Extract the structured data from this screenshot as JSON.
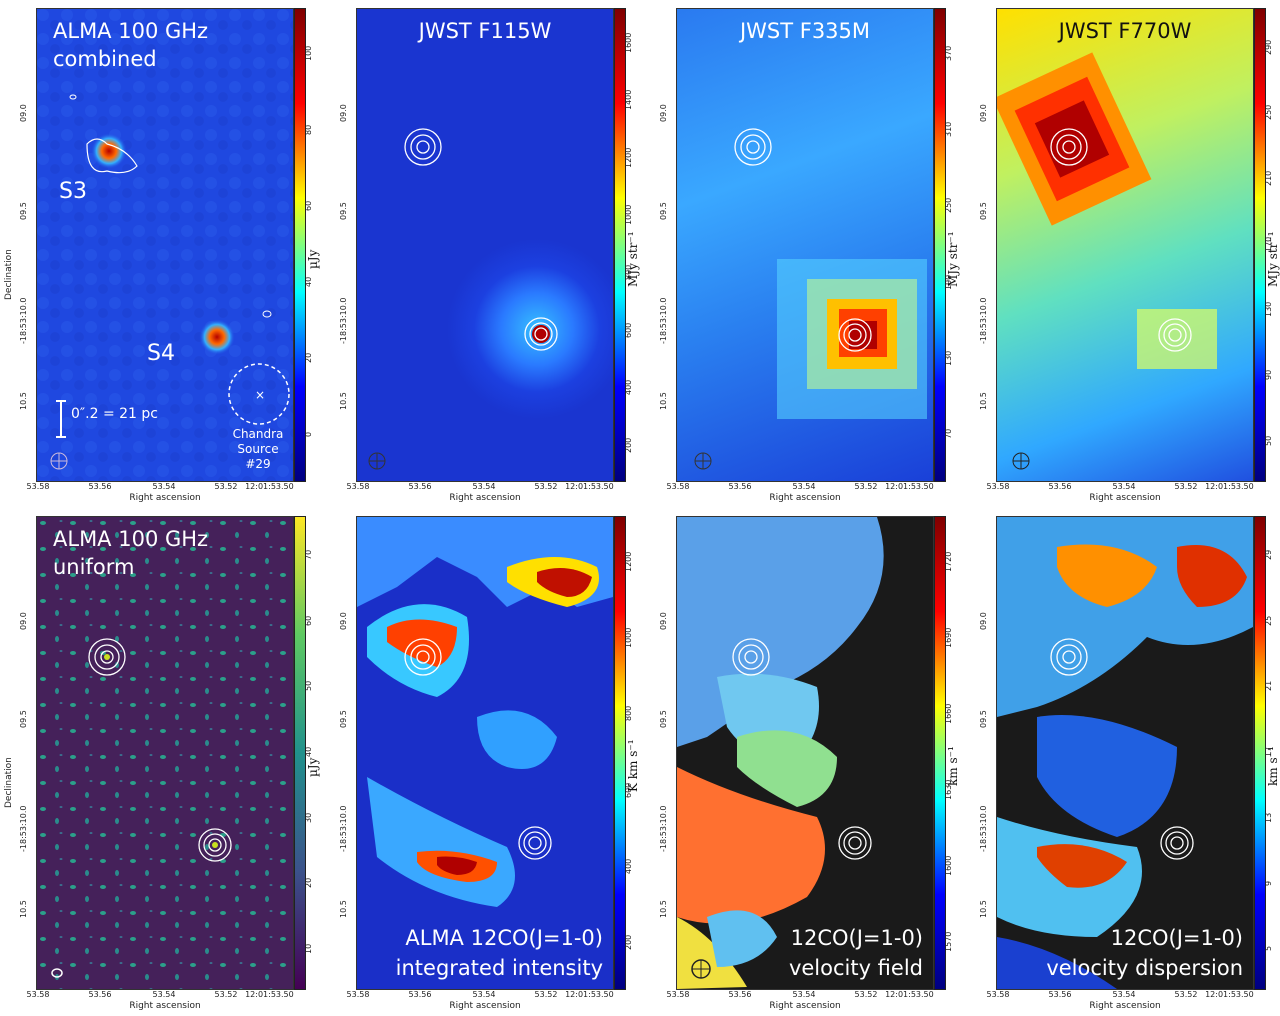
{
  "axes": {
    "xlabel": "Right ascension",
    "ylabel": "Declination",
    "xticks": [
      "53.58",
      "53.56",
      "53.54",
      "53.52",
      "12:01:53.50"
    ],
    "yticks": [
      "09.0",
      "09.5",
      "-18:53:10.0",
      "10.5"
    ]
  },
  "panels": [
    {
      "title": "ALMA 100 GHz\ncombined",
      "unit": "µJy",
      "ticks": [
        "0",
        "20",
        "40",
        "60",
        "80",
        "100"
      ],
      "colormap": "jet",
      "source_labels": [
        "S3",
        "S4"
      ],
      "scalebar": "0″.2 = 21 pc",
      "chandra": "Chandra\nSource #29"
    },
    {
      "title": "JWST F115W",
      "unit": "MJy str⁻¹",
      "ticks": [
        "200",
        "400",
        "600",
        "800",
        "1000",
        "1200",
        "1400",
        "1600"
      ],
      "colormap": "jet"
    },
    {
      "title": "JWST F335M",
      "unit": "MJy str⁻¹",
      "ticks": [
        "70",
        "130",
        "190",
        "250",
        "310",
        "370"
      ],
      "colormap": "jet"
    },
    {
      "title": "JWST F770W",
      "unit": "MJy str⁻¹",
      "ticks": [
        "50",
        "90",
        "130",
        "170",
        "210",
        "250",
        "290"
      ],
      "colormap": "jet"
    },
    {
      "title": "ALMA 100 GHz\nuniform",
      "unit": "µJy",
      "ticks": [
        "10",
        "20",
        "30",
        "40",
        "50",
        "60",
        "70"
      ],
      "colormap": "viridis"
    },
    {
      "title": "ALMA 12CO(J=1-0)\nintegrated intensity",
      "unit": "K km s⁻¹",
      "ticks": [
        "200",
        "400",
        "600",
        "800",
        "1000",
        "1200"
      ],
      "colormap": "jet"
    },
    {
      "title": "12CO(J=1-0)\nvelocity field",
      "unit": "km s⁻¹",
      "ticks": [
        "1570",
        "1600",
        "1630",
        "1660",
        "1690",
        "1720"
      ],
      "colormap": "jet"
    },
    {
      "title": "12CO(J=1-0)\nvelocity dispersion",
      "unit": "km s⁻¹",
      "ticks": [
        "5",
        "9",
        "13",
        "17",
        "21",
        "25",
        "29"
      ],
      "colormap": "jet"
    }
  ]
}
